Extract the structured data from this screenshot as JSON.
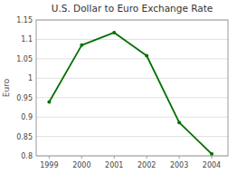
{
  "chart_data": {
    "type": "line",
    "title": "U.S. Dollar to Euro Exchange Rate",
    "ylabel": "Euro",
    "x": [
      1999,
      2000,
      2001,
      2002,
      2003,
      2004
    ],
    "values": [
      0.9389,
      1.085,
      1.1175,
      1.0578,
      0.886,
      0.805
    ],
    "color": "#007000",
    "marker": "point",
    "xlim": [
      1998.6,
      2004.5
    ],
    "ylim": [
      0.8,
      1.15
    ],
    "xticks": [
      1999,
      2000,
      2001,
      2002,
      2003,
      2004
    ],
    "yticks": [
      0.8,
      0.85,
      0.9,
      0.95,
      1,
      1.05,
      1.1,
      1.15
    ],
    "grid": true
  }
}
